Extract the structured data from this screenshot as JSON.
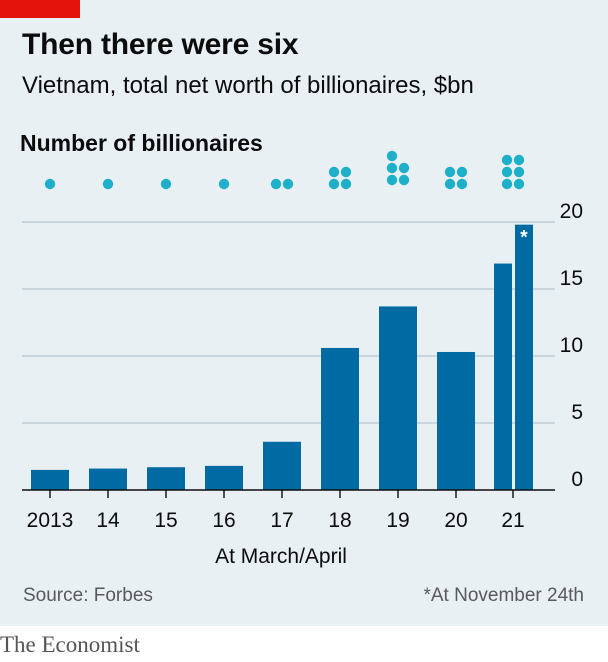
{
  "brand": "The Economist",
  "colors": {
    "background": "#e9f0f4",
    "bar": "#006ba2",
    "dot": "#1fb0c9",
    "grid": "#b7c6cf",
    "accent": "#e3120b"
  },
  "source": "Source: Forbes",
  "footnote": "*At November 24th",
  "chart_data": {
    "type": "bar",
    "title": "Then there were six",
    "subtitle": "Vietnam, total net worth of billionaires, $bn",
    "dots_label": "Number of billionaires",
    "xlabel": "At March/April",
    "ylabel": "",
    "categories": [
      "2013",
      "14",
      "15",
      "16",
      "17",
      "18",
      "19",
      "20",
      "21",
      "21*"
    ],
    "values": [
      1.5,
      1.6,
      1.7,
      1.8,
      3.6,
      10.6,
      13.7,
      10.3,
      16.9,
      19.8
    ],
    "billionaire_counts": [
      1,
      1,
      1,
      1,
      2,
      4,
      5,
      4,
      6,
      6
    ],
    "ylim": [
      0,
      20
    ],
    "yticks": [
      "0",
      "5",
      "10",
      "15",
      "20"
    ],
    "grid": true,
    "y_axis_position": "right",
    "bar_annotations": [
      {
        "category": "21*",
        "text": "*"
      }
    ]
  }
}
